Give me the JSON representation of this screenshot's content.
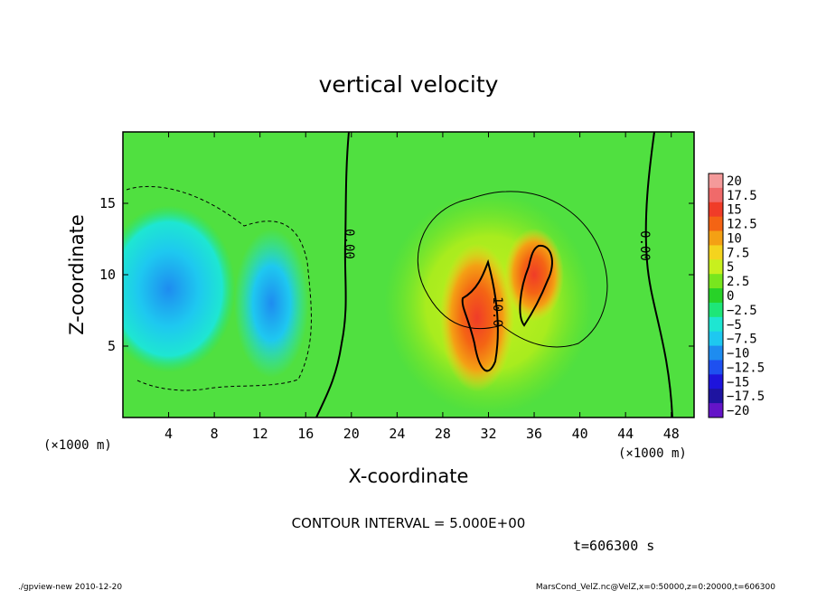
{
  "chart_data": {
    "type": "heatmap",
    "title": "vertical velocity",
    "xlabel": "X-coordinate",
    "ylabel": "Z-coordinate",
    "x_unit_label": "(×1000 m)",
    "y_unit_label": "(×1000 m)",
    "xlim": [
      0,
      50
    ],
    "ylim": [
      0,
      20
    ],
    "xticks": [
      4,
      8,
      12,
      16,
      20,
      24,
      28,
      32,
      36,
      40,
      44,
      48
    ],
    "yticks": [
      5,
      10,
      15
    ],
    "contour_interval_text": "CONTOUR INTERVAL = 5.000E+00",
    "time_text": "t=606300 s",
    "contour_labels": [
      "0.00",
      "0.00",
      "10.0"
    ],
    "colorbar": {
      "labels": [
        "20",
        "17.5",
        "15",
        "12.5",
        "10",
        "7.5",
        "5",
        "2.5",
        "0",
        "−2.5",
        "−5",
        "−7.5",
        "−10",
        "−12.5",
        "−15",
        "−17.5",
        "−20"
      ],
      "colors": [
        "#f49a9a",
        "#f06a6a",
        "#f03c28",
        "#f46414",
        "#f4a014",
        "#f4d41e",
        "#c8f01e",
        "#78e61e",
        "#28d228",
        "#1ee678",
        "#1ee6d2",
        "#1ec8f0",
        "#1e8cf0",
        "#1e50f0",
        "#1e14dc",
        "#1e14a0",
        "#6414c8"
      ]
    },
    "field": {
      "background": "#50e040",
      "features": [
        {
          "kind": "down",
          "x": 4,
          "z": 9,
          "rx": 4.5,
          "rz": 4.5,
          "value": -7
        },
        {
          "kind": "down",
          "x": 13,
          "z": 8,
          "rx": 2.5,
          "rz": 4,
          "value": -6
        },
        {
          "kind": "up",
          "x": 32,
          "z": 8,
          "rx": 7,
          "rz": 6,
          "value": 5
        },
        {
          "kind": "up",
          "x": 31,
          "z": 7,
          "rx": 2.5,
          "rz": 4,
          "value": 14
        },
        {
          "kind": "up",
          "x": 36,
          "z": 10,
          "rx": 2,
          "rz": 2.5,
          "value": 12
        }
      ]
    }
  },
  "footer": {
    "left": "./gpview-new   2010-12-20",
    "right": "MarsCond_VelZ.nc@VelZ,x=0:50000,z=0:20000,t=606300"
  }
}
